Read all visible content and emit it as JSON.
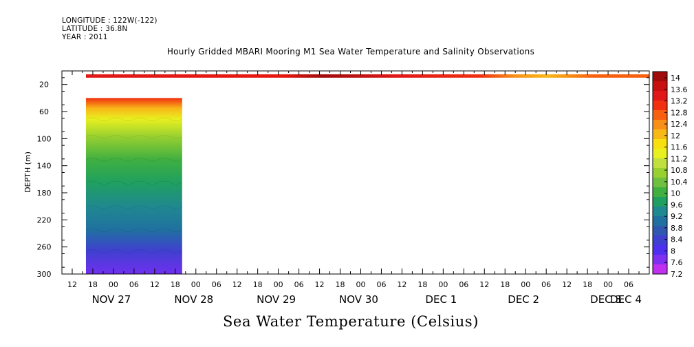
{
  "header": {
    "longitude": "LONGITUDE : 122W(-122)",
    "latitude": "LATITUDE : 36.8N",
    "year": "YEAR : 2011"
  },
  "chart_data": {
    "type": "heatmap",
    "title": "Hourly Gridded MBARI Mooring M1 Sea Water Temperature and Salinity Observations",
    "xlabel": "Sea Water Temperature (Celsius)",
    "ylabel": "DEPTH (m)",
    "y_axis": {
      "ticks": [
        20,
        60,
        100,
        140,
        180,
        220,
        260,
        300
      ],
      "range": [
        0,
        300
      ],
      "inverted": true
    },
    "x_axis": {
      "range_hours": [
        -15,
        156
      ],
      "hour_ticks": [
        "12",
        "18",
        "00",
        "06",
        "12",
        "18",
        "00",
        "06",
        "12",
        "18",
        "00",
        "06",
        "12",
        "18",
        "00",
        "06",
        "12",
        "18",
        "00",
        "06",
        "12",
        "18",
        "00",
        "06",
        "12",
        "18",
        "00",
        "06"
      ],
      "day_labels": [
        {
          "label": "NOV 27",
          "hour": 0
        },
        {
          "label": "NOV 28",
          "hour": 24
        },
        {
          "label": "NOV 29",
          "hour": 48
        },
        {
          "label": "NOV 30",
          "hour": 72
        },
        {
          "label": "DEC  1",
          "hour": 96
        },
        {
          "label": "DEC  2",
          "hour": 120
        },
        {
          "label": "DEC  3",
          "hour": 144
        },
        {
          "label": "DEC  4",
          "hour": 168
        }
      ]
    },
    "colorbar": {
      "labels": [
        "14",
        "13.6",
        "13.2",
        "12.8",
        "12.4",
        "12",
        "11.6",
        "11.2",
        "10.8",
        "10.4",
        "10",
        "9.6",
        "9.2",
        "8.8",
        "8.4",
        "8",
        "7.6",
        "7.2"
      ],
      "values": [
        14,
        13.6,
        13.2,
        12.8,
        12.4,
        12,
        11.6,
        11.2,
        10.8,
        10.4,
        10,
        9.6,
        9.2,
        8.8,
        8.4,
        8,
        7.6,
        7.2
      ],
      "colors": [
        "#a00c0c",
        "#c81010",
        "#e01818",
        "#f03010",
        "#f86010",
        "#f89018",
        "#f8b818",
        "#f8e010",
        "#e8f020",
        "#c0e040",
        "#98d030",
        "#70c040",
        "#40b040",
        "#20a060",
        "#208890",
        "#2070a0",
        "#3058b0",
        "#4040d0",
        "#5030f0",
        "#8030f0",
        "#c030f0"
      ]
    },
    "series": [
      {
        "depth_range": [
          5,
          10
        ],
        "time_range_hours": [
          -8,
          156
        ],
        "values_along_time": [
          13.3,
          13.4,
          13.5,
          13.6,
          13.8,
          13.9,
          13.7,
          13.5,
          13.3,
          13.1,
          12.9,
          12.7,
          12.9,
          13.0,
          13.1
        ]
      },
      {
        "depth_range": [
          40,
          300
        ],
        "time_range_hours": [
          -8,
          20
        ],
        "values_along_depth": [
          13.3,
          12.2,
          11.3,
          10.5,
          10.0,
          9.6,
          9.1,
          8.8,
          8.4,
          8.0,
          7.6
        ]
      }
    ]
  }
}
